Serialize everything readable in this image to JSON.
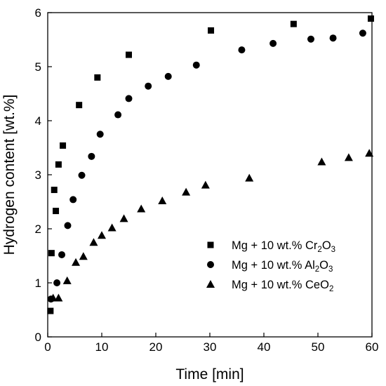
{
  "chart_data": {
    "type": "scatter",
    "xlabel": "Time [min]",
    "ylabel": "Hydrogen content [wt.%]",
    "xlim": [
      0,
      60
    ],
    "ylim": [
      0,
      6
    ],
    "xticks": [
      0,
      10,
      20,
      30,
      40,
      50,
      60
    ],
    "yticks": [
      0,
      1,
      2,
      3,
      4,
      5,
      6
    ],
    "grid": false,
    "legend_position": "bottom-right",
    "series": [
      {
        "name": "Mg + 10 wt.% Cr2O3",
        "legend": {
          "prefix": "Mg + 10 wt.% Cr",
          "sub1": "2",
          "mid": "O",
          "sub2": "3"
        },
        "marker": "square",
        "x": [
          0.5,
          0.7,
          1.2,
          1.5,
          2.0,
          2.8,
          5.8,
          9.2,
          15.0,
          30.2,
          45.5,
          59.8
        ],
        "y": [
          0.48,
          1.55,
          2.72,
          2.33,
          3.19,
          3.54,
          4.29,
          4.8,
          5.22,
          5.67,
          5.79,
          5.89
        ]
      },
      {
        "name": "Mg + 10 wt.% Al2O3",
        "legend": {
          "prefix": "Mg + 10 wt.% Al",
          "sub1": "2",
          "mid": "O",
          "sub2": "3"
        },
        "marker": "circle",
        "x": [
          0.6,
          1.7,
          2.6,
          3.7,
          4.7,
          6.3,
          8.1,
          9.7,
          13.0,
          15.0,
          18.6,
          22.3,
          27.5,
          35.9,
          41.7,
          48.7,
          52.8,
          58.3
        ],
        "y": [
          0.7,
          1.0,
          1.52,
          2.06,
          2.54,
          2.99,
          3.34,
          3.75,
          4.11,
          4.41,
          4.64,
          4.82,
          5.03,
          5.31,
          5.43,
          5.51,
          5.53,
          5.62
        ]
      },
      {
        "name": "Mg + 10 wt.% CeO2",
        "legend": {
          "prefix": "Mg + 10 wt.% CeO",
          "sub1": "2",
          "mid": "",
          "sub2": ""
        },
        "marker": "triangle",
        "x": [
          1.0,
          2.0,
          3.6,
          5.2,
          6.6,
          8.5,
          10.0,
          11.9,
          14.1,
          17.3,
          21.2,
          25.6,
          29.2,
          37.3,
          50.7,
          55.7,
          59.5
        ],
        "y": [
          0.72,
          0.72,
          1.04,
          1.38,
          1.49,
          1.75,
          1.88,
          2.02,
          2.19,
          2.37,
          2.52,
          2.68,
          2.81,
          2.94,
          3.24,
          3.32,
          3.4
        ]
      }
    ]
  }
}
